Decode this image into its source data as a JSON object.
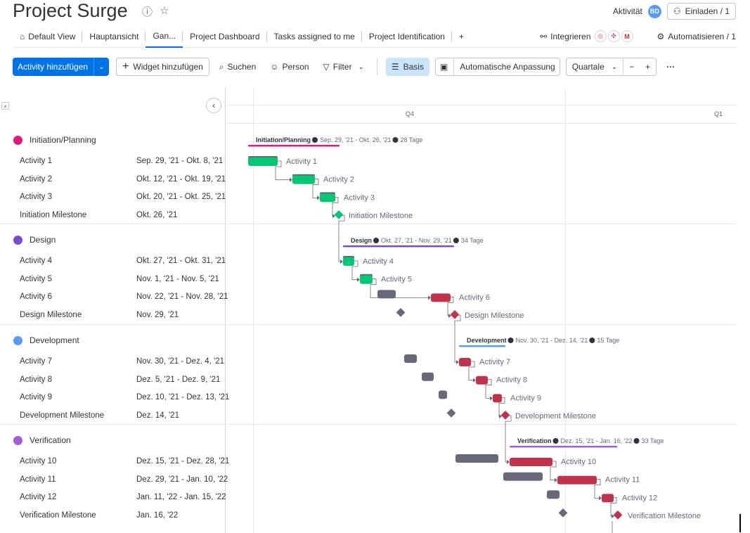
{
  "header": {
    "title": "Project Surge",
    "activity_label": "Aktivität",
    "avatar_initials": "BD",
    "invite_label": "Einladen / 1"
  },
  "tabs": [
    {
      "label": "Default View"
    },
    {
      "label": "Hauptansicht"
    },
    {
      "label": "Gan..."
    },
    {
      "label": "Project Dashboard"
    },
    {
      "label": "Tasks assigned to me"
    },
    {
      "label": "Project Identification"
    },
    {
      "label": "+"
    }
  ],
  "tabs_right": {
    "integrate_label": "Integrieren",
    "automate_label": "Automatisieren / 1"
  },
  "toolbar": {
    "add_activity": "Activity hinzufügen",
    "add_widget": "Widget hinzufügen",
    "search": "Suchen",
    "person": "Person",
    "filter": "Filter",
    "basis": "Basis",
    "auto_fit": "Automatische Anpassung",
    "zoom_select": "Quartale",
    "minus": "−",
    "plus": "+",
    "more": "···"
  },
  "timeline": {
    "quarters": [
      "Q4",
      "Q1"
    ]
  },
  "colors": {
    "planning": "#e2187c",
    "design": "#784bd1",
    "development": "#579bfc",
    "verification": "#a25ddc",
    "green": "#00c875",
    "red": "#c4314b",
    "baseline": "#676879",
    "primary": "#0073ea"
  },
  "groups": [
    {
      "name": "Initiation/Planning",
      "color": "#e2187c",
      "summary_dates": "Sep. 29, '21 - Okt. 26, '21",
      "summary_days": "28 Tage",
      "items": [
        {
          "name": "Activity 1",
          "date": "Sep. 29, '21 - Okt. 8, '21"
        },
        {
          "name": "Activity 2",
          "date": "Okt. 12, '21 - Okt. 19, '21"
        },
        {
          "name": "Activity 3",
          "date": "Okt. 20, '21 - Okt. 25, '21"
        },
        {
          "name": "Initiation Milestone",
          "date": "Okt. 26, '21"
        }
      ]
    },
    {
      "name": "Design",
      "color": "#784bd1",
      "summary_dates": "Okt. 27, '21 - Nov. 29, '21",
      "summary_days": "34 Tage",
      "items": [
        {
          "name": "Activity 4",
          "date": "Okt. 27, '21 - Okt. 31, '21"
        },
        {
          "name": "Activity 5",
          "date": "Nov. 1, '21 - Nov. 5, '21"
        },
        {
          "name": "Activity 6",
          "date": "Nov. 22, '21 - Nov. 28, '21"
        },
        {
          "name": "Design Milestone",
          "date": "Nov. 29, '21"
        }
      ]
    },
    {
      "name": "Development",
      "color": "#579bfc",
      "summary_dates": "Nov. 30, '21 - Dez. 14, '21",
      "summary_days": "15 Tage",
      "items": [
        {
          "name": "Activity 7",
          "date": "Nov. 30, '21 - Dez. 4, '21"
        },
        {
          "name": "Activity 8",
          "date": "Dez. 5, '21 - Dez. 9, '21"
        },
        {
          "name": "Activity 9",
          "date": "Dez. 10, '21 - Dez. 13, '21"
        },
        {
          "name": "Development Milestone",
          "date": "Dez. 14, '21"
        }
      ]
    },
    {
      "name": "Verification",
      "color": "#a25ddc",
      "summary_dates": "Dez. 15, '21 - Jan. 16, '22",
      "summary_days": "33 Tage",
      "items": [
        {
          "name": "Activity 10",
          "date": "Dez. 15, '21 - Dez. 28, '21"
        },
        {
          "name": "Activity 11",
          "date": "Dez. 29, '21 - Jan. 10, '22"
        },
        {
          "name": "Activity 12",
          "date": "Jan. 11, '22 - Jan. 15, '22"
        },
        {
          "name": "Verification Milestone",
          "date": "Jan. 16, '22"
        }
      ]
    }
  ]
}
